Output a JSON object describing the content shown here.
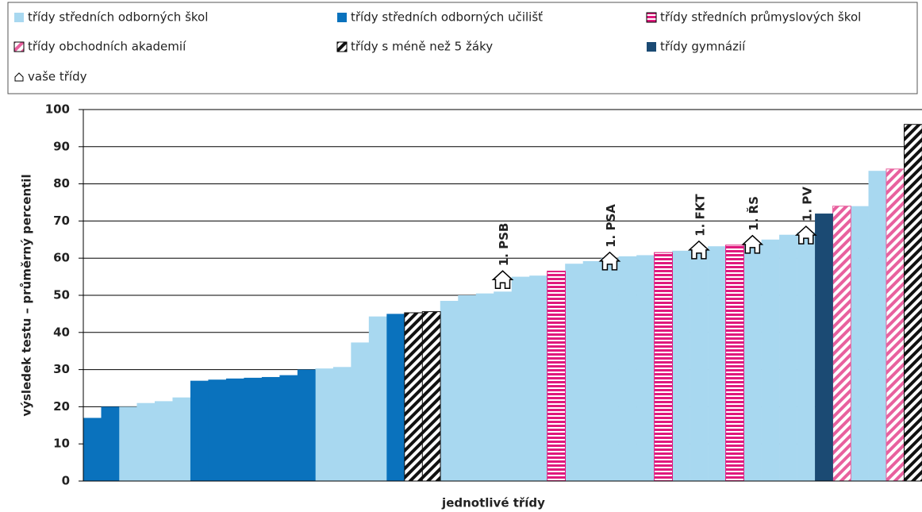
{
  "chart_data": {
    "type": "bar",
    "y_label": "výsledek testu – průměrný percentil",
    "x_label": "jednotlivé třídy",
    "ylim": [
      0,
      100
    ],
    "yticks": [
      0,
      10,
      20,
      30,
      40,
      50,
      60,
      70,
      80,
      90,
      100
    ],
    "grid": true,
    "legend": "top",
    "series": [
      {
        "name": "třídy středních odborných škol",
        "color": "#a8d8f0",
        "pattern": "solid",
        "values": [
          null,
          null,
          20,
          21,
          21.5,
          22.5,
          null,
          null,
          null,
          null,
          null,
          null,
          null,
          30.3,
          30.7,
          37.3,
          44.3,
          null,
          null,
          null,
          48.5,
          50,
          50.5,
          51,
          55,
          55.3,
          null,
          58.5,
          59.2,
          60,
          60.5,
          60.8,
          null,
          62,
          62.5,
          63.2,
          null,
          64,
          65,
          66.3,
          67,
          null,
          null,
          74,
          83.5,
          null,
          null
        ]
      },
      {
        "name": "třídy středních odborných učilišť",
        "color": "#0a72bd",
        "pattern": "solid",
        "values": [
          17,
          20,
          null,
          null,
          null,
          null,
          27,
          27.3,
          27.6,
          27.8,
          28,
          28.5,
          30,
          null,
          null,
          null,
          null,
          45,
          null,
          null,
          null,
          null,
          null,
          null,
          null,
          null,
          null,
          null,
          null,
          null,
          null,
          null,
          null,
          null,
          null,
          null,
          null,
          null,
          null,
          null,
          null,
          null,
          null,
          null,
          null,
          null,
          null
        ]
      },
      {
        "name": "třídy středních průmyslových škol",
        "color": "#e0197d",
        "pattern": "hstripe",
        "values": [
          null,
          null,
          null,
          null,
          null,
          null,
          null,
          null,
          null,
          null,
          null,
          null,
          null,
          null,
          null,
          null,
          null,
          null,
          null,
          null,
          null,
          null,
          null,
          null,
          null,
          null,
          56.5,
          null,
          null,
          null,
          null,
          null,
          61.5,
          null,
          null,
          null,
          63.5,
          null,
          null,
          null,
          null,
          null,
          null,
          null,
          null,
          null,
          null
        ]
      },
      {
        "name": "třídy obchodních akademií",
        "color": "#e8609e",
        "pattern": "diag",
        "values": [
          null,
          null,
          null,
          null,
          null,
          null,
          null,
          null,
          null,
          null,
          null,
          null,
          null,
          null,
          null,
          null,
          null,
          null,
          null,
          null,
          null,
          null,
          null,
          null,
          null,
          null,
          null,
          null,
          null,
          null,
          null,
          null,
          null,
          null,
          null,
          null,
          null,
          null,
          null,
          null,
          null,
          null,
          74,
          null,
          null,
          84,
          null
        ]
      },
      {
        "name": "třídy s méně než 5 žáky",
        "color": "#111111",
        "pattern": "diag",
        "values": [
          null,
          null,
          null,
          null,
          null,
          null,
          null,
          null,
          null,
          null,
          null,
          null,
          null,
          null,
          null,
          null,
          null,
          null,
          45.3,
          45.6,
          null,
          null,
          null,
          null,
          null,
          null,
          null,
          null,
          null,
          null,
          null,
          null,
          null,
          null,
          null,
          null,
          null,
          null,
          null,
          null,
          null,
          null,
          null,
          null,
          null,
          null,
          96
        ]
      },
      {
        "name": "třídy gymnázií",
        "color": "#1b4a73",
        "pattern": "solid",
        "values": [
          null,
          null,
          null,
          null,
          null,
          null,
          null,
          null,
          null,
          null,
          null,
          null,
          null,
          null,
          null,
          null,
          null,
          null,
          null,
          null,
          null,
          null,
          null,
          null,
          null,
          null,
          null,
          null,
          null,
          null,
          null,
          null,
          null,
          null,
          null,
          null,
          null,
          null,
          null,
          null,
          null,
          72,
          null,
          null,
          null,
          null,
          null
        ]
      },
      {
        "name": "vaše třídy",
        "color": "#ffffff",
        "pattern": "house",
        "values": [
          null,
          null,
          null,
          null,
          null,
          null,
          null,
          null,
          null,
          null,
          null,
          null,
          null,
          null,
          null,
          null,
          null,
          null,
          null,
          null,
          null,
          null,
          null,
          54,
          null,
          null,
          null,
          null,
          null,
          59,
          null,
          null,
          null,
          null,
          62,
          null,
          null,
          63.5,
          null,
          null,
          66,
          null,
          null,
          null,
          null,
          null,
          null
        ],
        "point_labels": [
          null,
          null,
          null,
          null,
          null,
          null,
          null,
          null,
          null,
          null,
          null,
          null,
          null,
          null,
          null,
          null,
          null,
          null,
          null,
          null,
          null,
          null,
          null,
          "1. PSB",
          null,
          null,
          null,
          null,
          null,
          "1. PSA",
          null,
          null,
          null,
          null,
          "1. FKT",
          null,
          null,
          "1. ŘS",
          null,
          null,
          "1. PV",
          null,
          null,
          null,
          null,
          null,
          null
        ]
      }
    ]
  }
}
